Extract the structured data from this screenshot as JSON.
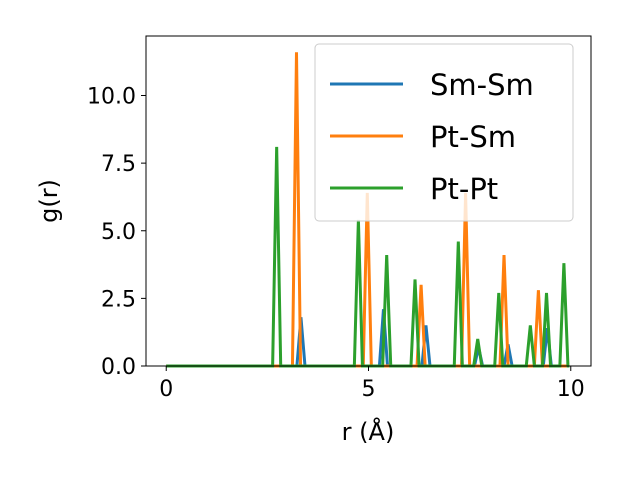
{
  "chart_data": {
    "type": "line",
    "title": "",
    "xlabel": "r (Å)",
    "ylabel": "g(r)",
    "xlim": [
      -0.5,
      10.5
    ],
    "ylim": [
      0,
      12.2
    ],
    "xticks": [
      0,
      5,
      10
    ],
    "xtick_labels": [
      "0",
      "5",
      "10"
    ],
    "yticks": [
      0,
      2.5,
      5,
      7.5,
      10
    ],
    "ytick_labels": [
      "0.0",
      "2.5",
      "5.0",
      "7.5",
      "10.0"
    ],
    "grid": false,
    "legend_position": "top-right",
    "peak_half_width": 0.1,
    "x_range": [
      0,
      9.9
    ],
    "series": [
      {
        "name": "Sm-Sm",
        "color": "#1f77b4",
        "peaks": [
          [
            3.33,
            1.8
          ],
          [
            5.37,
            2.1
          ],
          [
            6.42,
            1.5
          ],
          [
            7.72,
            0.7
          ],
          [
            8.45,
            0.8
          ],
          [
            9.42,
            1.4
          ]
        ]
      },
      {
        "name": "Pt-Sm",
        "color": "#ff7f0e",
        "peaks": [
          [
            3.22,
            11.6
          ],
          [
            4.97,
            6.4
          ],
          [
            6.3,
            3.0
          ],
          [
            7.4,
            6.4
          ],
          [
            8.35,
            4.1
          ],
          [
            9.2,
            2.8
          ]
        ]
      },
      {
        "name": "Pt-Pt",
        "color": "#2ca02c",
        "peaks": [
          [
            2.73,
            8.1
          ],
          [
            4.75,
            5.4
          ],
          [
            5.45,
            4.1
          ],
          [
            6.15,
            3.2
          ],
          [
            7.22,
            4.6
          ],
          [
            7.7,
            1.0
          ],
          [
            8.22,
            2.7
          ],
          [
            9.0,
            1.5
          ],
          [
            9.4,
            2.7
          ],
          [
            9.83,
            3.8
          ]
        ]
      }
    ]
  }
}
